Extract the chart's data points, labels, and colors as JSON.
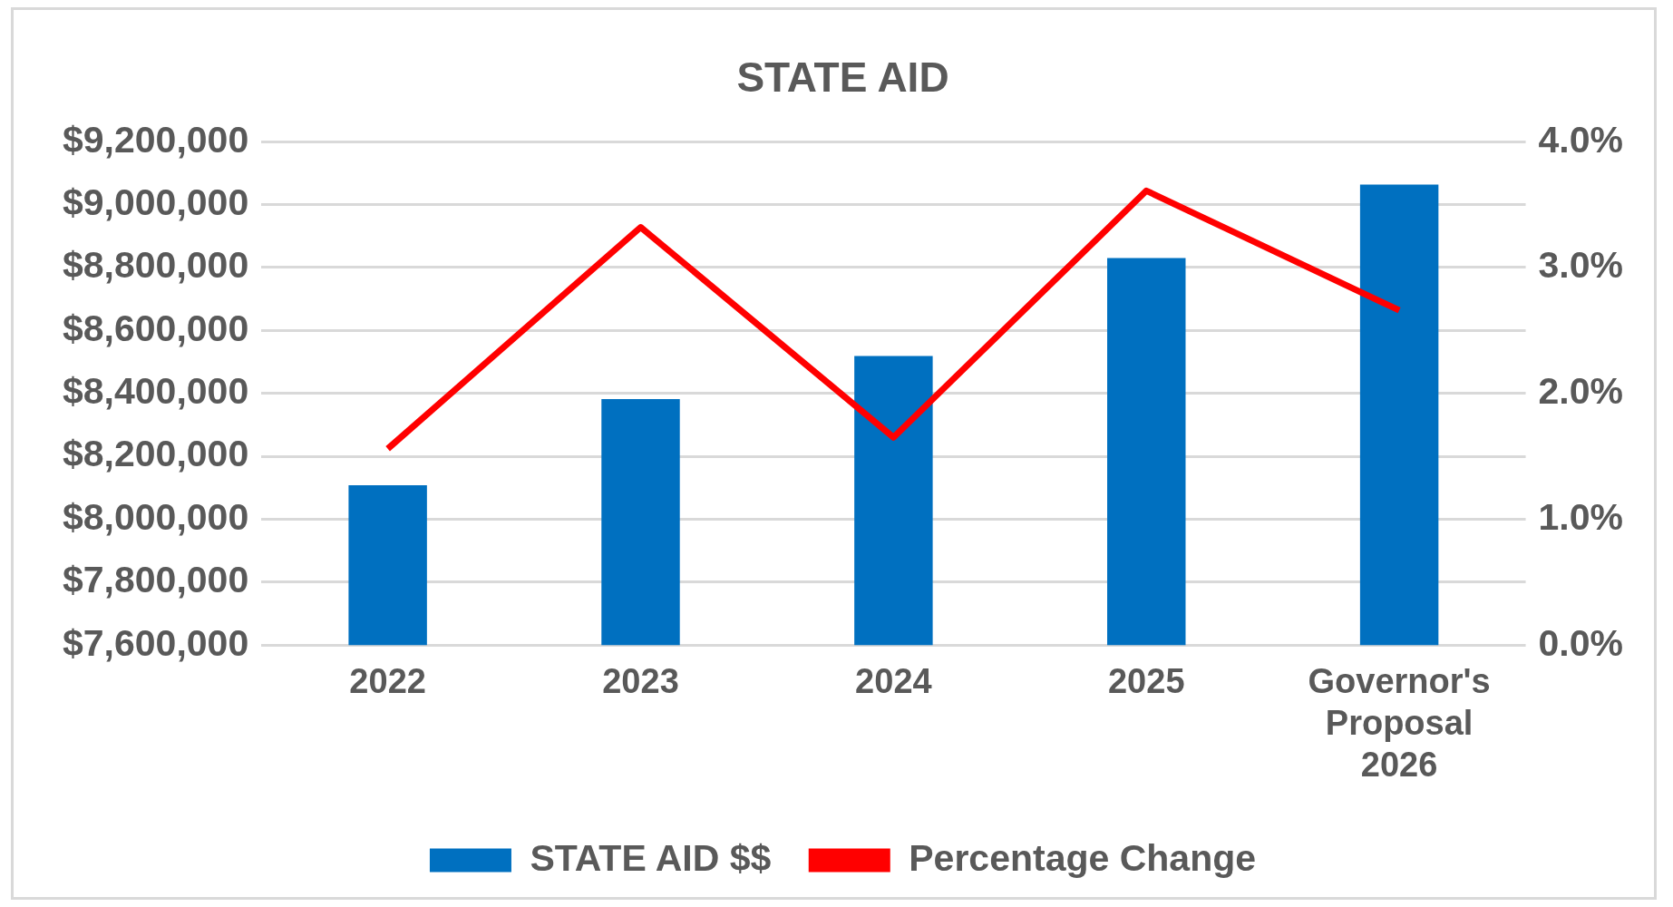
{
  "chart_data": {
    "type": "bar",
    "title": "STATE AID",
    "categories": [
      "2022",
      "2023",
      "2024",
      "2025",
      "Governor's Proposal 2026"
    ],
    "series": [
      {
        "name": "STATE AID $$",
        "color": "#0070c0",
        "values": [
          8108000,
          8382000,
          8519000,
          8830000,
          9064000
        ]
      },
      {
        "name": "Percentage Change",
        "type": "line",
        "axis": "y2",
        "color": "#ff0000",
        "values": [
          1.56,
          3.32,
          1.65,
          3.61,
          2.66
        ]
      }
    ],
    "ylim": [
      7600000,
      9200000
    ],
    "yticks": [
      {
        "value": 7600000,
        "label": "$7,600,000"
      },
      {
        "value": 7800000,
        "label": "$7,800,000"
      },
      {
        "value": 8000000,
        "label": "$8,000,000"
      },
      {
        "value": 8200000,
        "label": "$8,200,000"
      },
      {
        "value": 8400000,
        "label": "$8,400,000"
      },
      {
        "value": 8600000,
        "label": "$8,600,000"
      },
      {
        "value": 8800000,
        "label": "$8,800,000"
      },
      {
        "value": 9000000,
        "label": "$9,000,000"
      },
      {
        "value": 9200000,
        "label": "$9,200,000"
      }
    ],
    "y2lim": [
      0,
      4
    ],
    "y2ticks": [
      {
        "value": 0,
        "label": "0.0%"
      },
      {
        "value": 1,
        "label": "1.0%"
      },
      {
        "value": 2,
        "label": "2.0%"
      },
      {
        "value": 3,
        "label": "3.0%"
      },
      {
        "value": 4,
        "label": "4.0%"
      }
    ],
    "grid": "y",
    "legend": "bottom",
    "marker": "none",
    "line_style": "solid"
  }
}
